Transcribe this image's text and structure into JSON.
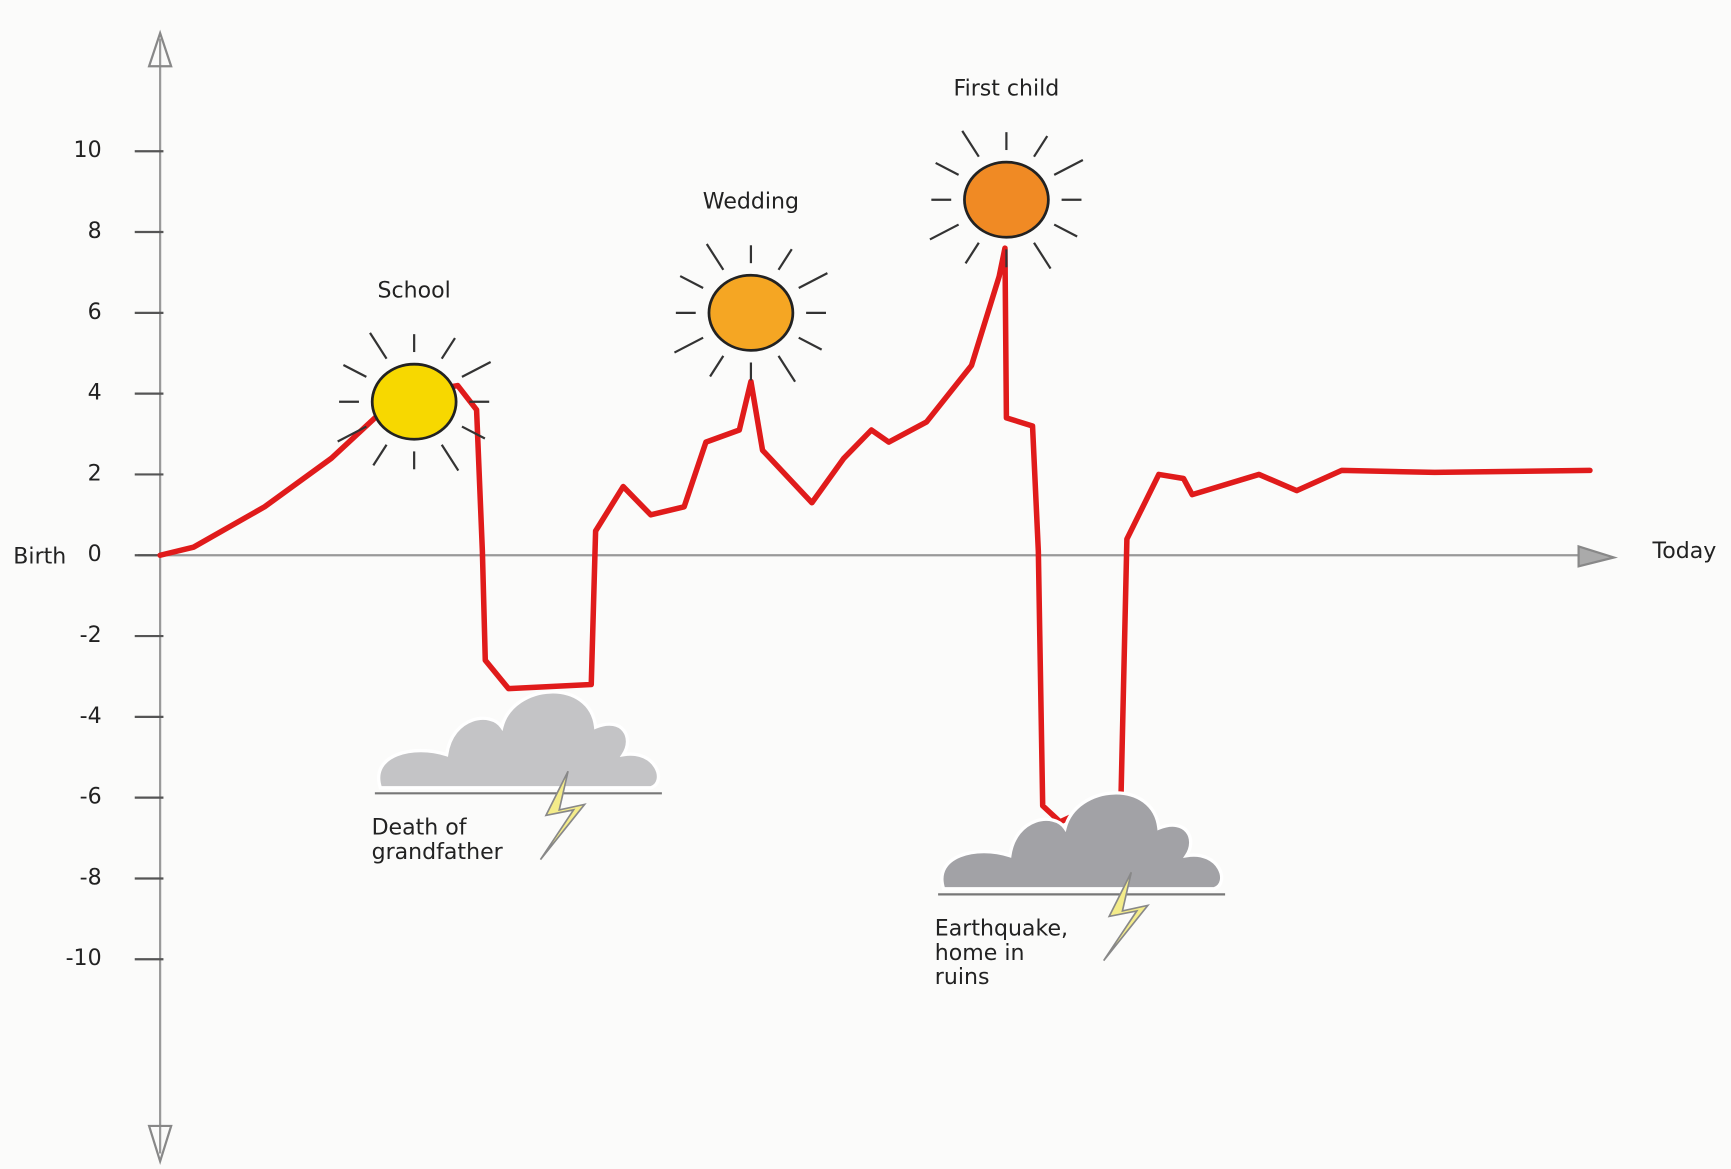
{
  "chart_data": {
    "type": "line",
    "x_start_label": "Birth",
    "x_end_label": "Today",
    "xlim": [
      0,
      100
    ],
    "ylim": [
      -14.9,
      12.5
    ],
    "yticks": [
      -10,
      -8,
      -6,
      -4,
      -2,
      0,
      2,
      4,
      6,
      8,
      10
    ],
    "series": [
      {
        "color": "#e01b1b",
        "x": [
          0,
          2.3,
          7.2,
          11.8,
          14.8,
          17.5,
          20.5,
          21.8,
          22.2,
          22.4,
          24,
          29.7,
          30,
          31.9,
          33.8,
          36.1,
          37.6,
          39.9,
          40.7,
          41.5,
          44.9,
          47.1,
          49,
          50.2,
          52.8,
          55.9,
          57.8,
          58.2,
          58.3,
          60.1,
          60.5,
          60.8,
          62,
          66.2,
          66.6,
          68.8,
          70.5,
          71.1,
          75.7,
          78.3,
          81.4,
          87.8,
          98.5
        ],
        "values": [
          0,
          0.2,
          1.2,
          2.4,
          3.4,
          4.0,
          4.2,
          3.6,
          0.1,
          -2.6,
          -3.3,
          -3.2,
          0.6,
          1.7,
          1.0,
          1.2,
          2.8,
          3.1,
          4.3,
          2.6,
          1.3,
          2.4,
          3.1,
          2.8,
          3.3,
          4.7,
          6.9,
          7.6,
          3.4,
          3.2,
          0.1,
          -6.2,
          -6.6,
          -5.9,
          0.4,
          2.0,
          1.9,
          1.5,
          2.0,
          1.6,
          2.1,
          2.05,
          2.1
        ]
      }
    ],
    "annotations": [
      {
        "lines": [
          "School"
        ],
        "icon": "sun",
        "color": "#f7d800",
        "x": 17.5,
        "y": 3.8
      },
      {
        "lines": [
          "Wedding"
        ],
        "icon": "sun",
        "color": "#f5a623",
        "x": 40.7,
        "y": 6.0
      },
      {
        "lines": [
          "First child"
        ],
        "icon": "sun",
        "color": "#f08a24",
        "x": 58.3,
        "y": 8.8
      },
      {
        "lines": [
          "Death of",
          "grandfather"
        ],
        "icon": "cloud",
        "color": "#c4c4c6",
        "x": 24.3,
        "y": -4.8
      },
      {
        "lines": [
          "Earthquake,",
          "home in",
          "ruins"
        ],
        "icon": "cloud",
        "color": "#a2a2a6",
        "x": 63.1,
        "y": -7.3
      }
    ]
  }
}
